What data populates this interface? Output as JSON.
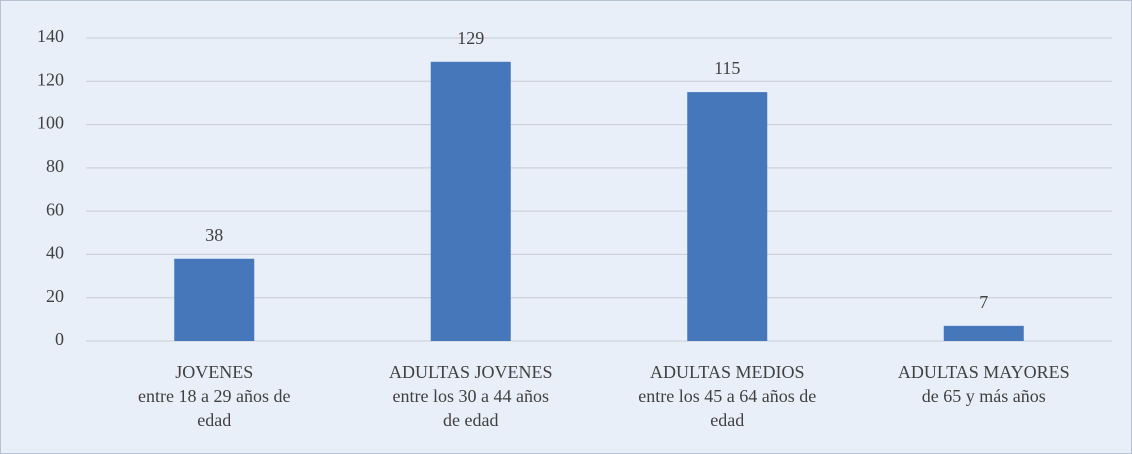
{
  "chart_data": {
    "type": "bar",
    "categories": [
      [
        "JOVENES",
        "entre 18 a 29 años de",
        "edad"
      ],
      [
        "ADULTAS JOVENES",
        "entre los 30 a 44 años",
        "de edad"
      ],
      [
        "ADULTAS MEDIOS",
        "entre los 45 a 64 años de",
        "edad"
      ],
      [
        "ADULTAS MAYORES",
        "de 65 y más años"
      ]
    ],
    "values": [
      38,
      129,
      115,
      7
    ],
    "color": "#4677bb",
    "ylim": [
      0,
      140
    ],
    "yticks": [
      0,
      20,
      40,
      60,
      80,
      100,
      120,
      140
    ],
    "grid": true
  }
}
